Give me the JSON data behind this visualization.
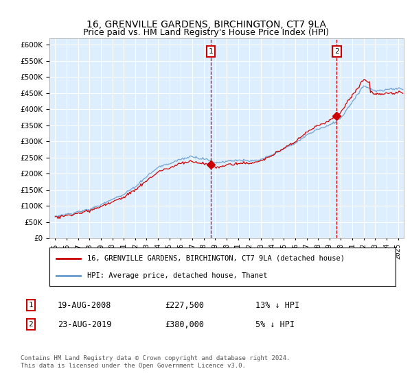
{
  "title": "16, GRENVILLE GARDENS, BIRCHINGTON, CT7 9LA",
  "subtitle": "Price paid vs. HM Land Registry's House Price Index (HPI)",
  "legend_line1": "16, GRENVILLE GARDENS, BIRCHINGTON, CT7 9LA (detached house)",
  "legend_line2": "HPI: Average price, detached house, Thanet",
  "sale1_date": "19-AUG-2008",
  "sale1_price": "£227,500",
  "sale1_hpi": "13% ↓ HPI",
  "sale1_year": 2008.63,
  "sale1_value": 227500,
  "sale2_date": "23-AUG-2019",
  "sale2_price": "£380,000",
  "sale2_hpi": "5% ↓ HPI",
  "sale2_year": 2019.64,
  "sale2_value": 380000,
  "ylim": [
    0,
    620000
  ],
  "xlim_left": 1994.5,
  "xlim_right": 2025.5,
  "background_color": "#ffffff",
  "plot_bg_color": "#ddeeff",
  "grid_color": "#ccddee",
  "hpi_line_color": "#6699cc",
  "property_line_color": "#cc0000",
  "vline_color": "#cc0000",
  "marker_box_color": "#cc0000",
  "footer_text": "Contains HM Land Registry data © Crown copyright and database right 2024.\nThis data is licensed under the Open Government Licence v3.0.",
  "yticks": [
    0,
    50000,
    100000,
    150000,
    200000,
    250000,
    300000,
    350000,
    400000,
    450000,
    500000,
    550000,
    600000
  ]
}
